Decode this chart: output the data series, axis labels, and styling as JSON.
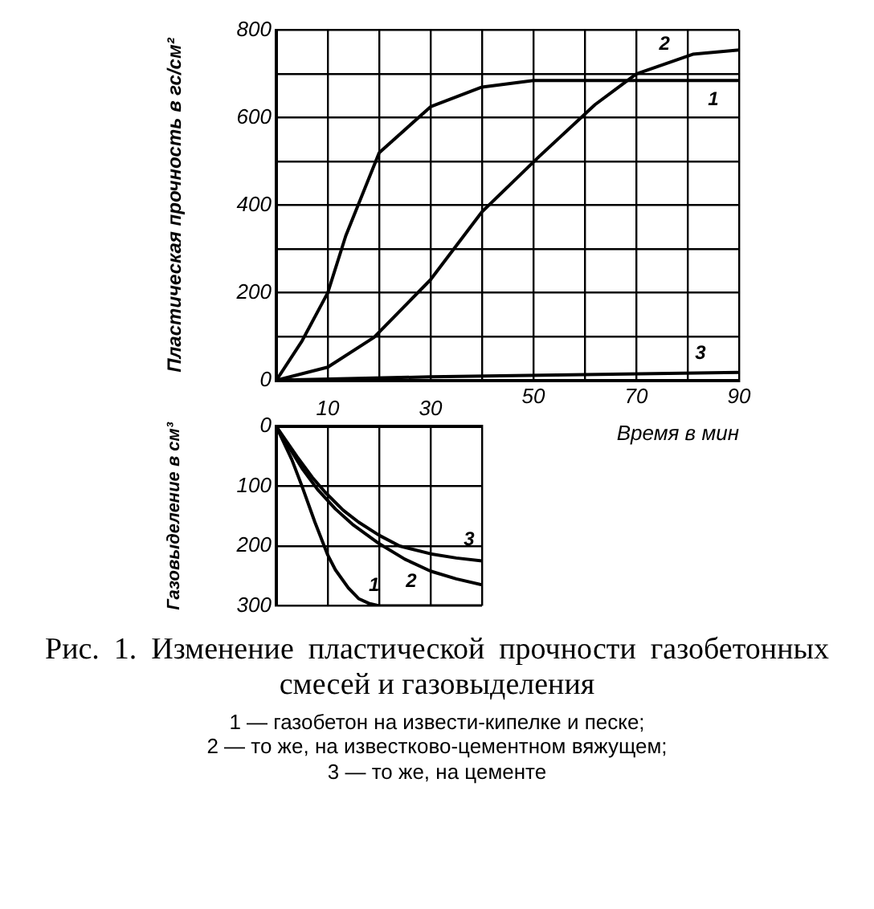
{
  "chart_data": [
    {
      "type": "line",
      "title": "Рис. 1. Изменение пластической прочности газобетонных смесей и газовыделения",
      "xlabel": "Время в мин",
      "ylabel": "Пластическая прочность в гс/см²",
      "xlim": [
        0,
        90
      ],
      "xticks": [
        {
          "value": 0,
          "label": null
        },
        {
          "value": 10,
          "label": null
        },
        {
          "value": 20,
          "label": null
        },
        {
          "value": 30,
          "label": null
        },
        {
          "value": 40,
          "label": null
        },
        50,
        {
          "value": 60,
          "label": null
        },
        70,
        {
          "value": 80,
          "label": null
        },
        90
      ],
      "ylim": [
        0,
        800
      ],
      "yticks": [
        0,
        {
          "value": 100,
          "label": null
        },
        200,
        {
          "value": 300,
          "label": null
        },
        400,
        {
          "value": 500,
          "label": null
        },
        600,
        {
          "value": 700,
          "label": null
        },
        800
      ],
      "grid": true,
      "marker": "none",
      "line_style": "solid",
      "legend": false,
      "series": [
        {
          "name": "1",
          "color": "#000000",
          "x": [
            0,
            5,
            10,
            13.5,
            20,
            30,
            40,
            50,
            60,
            70,
            80,
            90
          ],
          "values": [
            0,
            90,
            200,
            330,
            520,
            625,
            670,
            685,
            685,
            685,
            685,
            685
          ]
        },
        {
          "name": "2",
          "color": "#000000",
          "x": [
            0,
            10,
            19,
            30,
            40,
            51,
            62,
            70,
            81,
            90
          ],
          "values": [
            0,
            30,
            98,
            230,
            385,
            510,
            630,
            700,
            745,
            755
          ]
        },
        {
          "name": "3",
          "color": "#000000",
          "x": [
            0,
            30,
            60,
            90
          ],
          "values": [
            0,
            8,
            13,
            18
          ]
        }
      ]
    },
    {
      "type": "line",
      "ylabel": "Газовыделение в см³",
      "xlim": [
        0,
        40
      ],
      "xticks": [
        {
          "value": 0,
          "label": null
        },
        10,
        {
          "value": 20,
          "label": null
        },
        30,
        {
          "value": 40,
          "label": null
        }
      ],
      "ylim": [
        300,
        0
      ],
      "yticks": [
        0,
        100,
        200,
        300
      ],
      "grid": true,
      "marker": "none",
      "line_style": "solid",
      "legend": false,
      "annotations": [
        "1 — газобетон на извести-кипелке и песке;",
        "2 — то же, на известково-цементном вяжущем;",
        "3 — то же, на цементе"
      ],
      "series": [
        {
          "name": "1",
          "color": "#000000",
          "x": [
            0,
            3,
            5,
            7.5,
            10,
            11.5,
            14,
            16,
            18,
            20,
            30,
            40
          ],
          "values": [
            0,
            55,
            100,
            160,
            215,
            240,
            270,
            288,
            296,
            300,
            300,
            300
          ]
        },
        {
          "name": "2",
          "color": "#000000",
          "x": [
            0,
            3,
            5,
            8,
            11.5,
            15,
            20,
            25,
            30,
            35,
            40
          ],
          "values": [
            0,
            42,
            70,
            105,
            138,
            165,
            196,
            222,
            242,
            255,
            265
          ]
        },
        {
          "name": "3",
          "color": "#000000",
          "x": [
            0,
            4,
            7,
            9.5,
            13,
            16,
            20,
            24,
            30,
            35,
            40
          ],
          "values": [
            0,
            50,
            85,
            110,
            140,
            160,
            182,
            200,
            213,
            220,
            225
          ]
        }
      ]
    }
  ]
}
